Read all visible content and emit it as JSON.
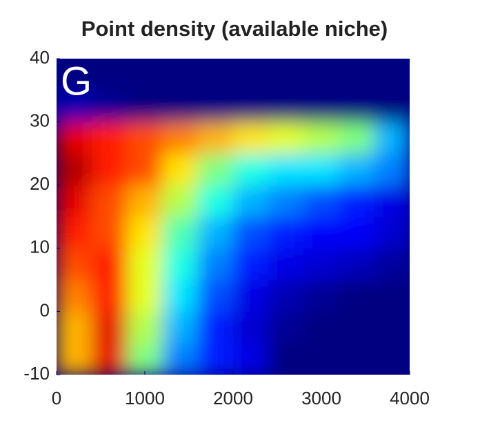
{
  "chart_data": {
    "type": "heatmap",
    "title": "Point density (available niche)",
    "panel_label": "G",
    "colormap": "jet",
    "x_bins": [
      0,
      400,
      800,
      1200,
      1600,
      2000,
      2400,
      2800,
      3200,
      3600,
      4000
    ],
    "y_bins": [
      -10,
      -5,
      0,
      5,
      10,
      15,
      20,
      25,
      30,
      35,
      40
    ],
    "values": [
      [
        0.7,
        0.9,
        0.5,
        0.25,
        0.15,
        0.1,
        0,
        0,
        0,
        0
      ],
      [
        0.7,
        0.9,
        0.55,
        0.3,
        0.15,
        0.08,
        0.02,
        0,
        0,
        0
      ],
      [
        0.75,
        0.85,
        0.6,
        0.35,
        0.2,
        0.1,
        0.05,
        0.02,
        0,
        0
      ],
      [
        0.8,
        0.85,
        0.6,
        0.4,
        0.25,
        0.15,
        0.1,
        0.08,
        0.06,
        0.03
      ],
      [
        0.85,
        0.8,
        0.65,
        0.45,
        0.3,
        0.2,
        0.15,
        0.12,
        0.12,
        0.08
      ],
      [
        0.9,
        0.8,
        0.7,
        0.55,
        0.4,
        0.3,
        0.25,
        0.2,
        0.15,
        0.1
      ],
      [
        0.95,
        0.85,
        0.8,
        0.65,
        0.5,
        0.4,
        0.35,
        0.35,
        0.3,
        0.25
      ],
      [
        0.9,
        0.85,
        0.8,
        0.75,
        0.7,
        0.65,
        0.6,
        0.55,
        0.5,
        0.3
      ],
      [
        0.05,
        0.02,
        0,
        0,
        0,
        0,
        0,
        0,
        0,
        0
      ],
      [
        0,
        0,
        0,
        0,
        0,
        0,
        0,
        0,
        0,
        0
      ]
    ],
    "xlim": [
      0,
      4000
    ],
    "ylim": [
      -10,
      40
    ],
    "xticks": [
      0,
      1000,
      2000,
      3000,
      4000
    ],
    "yticks": [
      -10,
      0,
      10,
      20,
      30,
      40
    ]
  }
}
